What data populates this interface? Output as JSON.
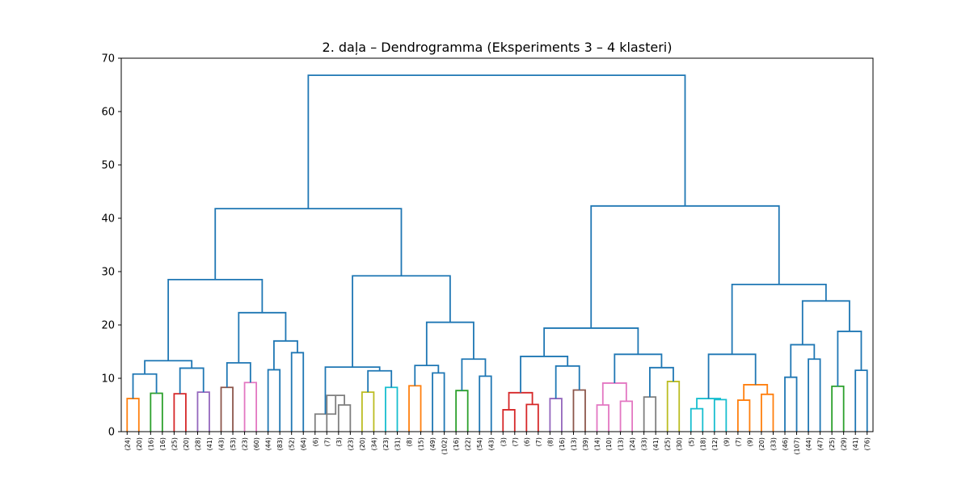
{
  "chart_data": {
    "type": "dendrogram",
    "title": "2. daļa – Dendrogramma (Eksperiments 3 – 4 klasteri)",
    "xlabel": "",
    "ylabel": "",
    "ylim": [
      0,
      70
    ],
    "yticks": [
      "0",
      "10",
      "20",
      "30",
      "40",
      "50",
      "60",
      "70"
    ],
    "grid": false,
    "leaf_labels": [
      "(24)",
      "(20)",
      "(16)",
      "(16)",
      "(25)",
      "(20)",
      "(28)",
      "(41)",
      "(43)",
      "(53)",
      "(23)",
      "(60)",
      "(44)",
      "(83)",
      "(52)",
      "(64)",
      "(6)",
      "(7)",
      "(3)",
      "(23)",
      "(20)",
      "(34)",
      "(23)",
      "(31)",
      "(8)",
      "(15)",
      "(49)",
      "(102)",
      "(16)",
      "(22)",
      "(54)",
      "(43)",
      "(3)",
      "(7)",
      "(6)",
      "(7)",
      "(8)",
      "(16)",
      "(13)",
      "(39)",
      "(14)",
      "(10)",
      "(13)",
      "(24)",
      "(33)",
      "(41)",
      "(25)",
      "(30)",
      "(5)",
      "(18)",
      "(12)",
      "(9)",
      "(7)",
      "(9)",
      "(20)",
      "(33)",
      "(46)",
      "(107)",
      "(44)",
      "(47)",
      "(25)",
      "(29)",
      "(41)",
      "(76)"
    ],
    "link_colors": {
      "C0": "#1f77b4",
      "C1": "#ff7f0e",
      "C2": "#2ca02c",
      "C3": "#d62728",
      "C4": "#9467bd",
      "C5": "#8c564b",
      "C6": "#e377c2",
      "C7": "#7f7f7f",
      "C8": "#bcbd22",
      "C9": "#17becf"
    },
    "links": [
      {
        "a": 0,
        "b": 1,
        "h": 6.2,
        "c": "C1"
      },
      {
        "a": 2,
        "b": 3,
        "h": 7.2,
        "c": "C2"
      },
      {
        "a": 4,
        "b": 5,
        "h": 7.1,
        "c": "C3"
      },
      {
        "a": 6,
        "b": 7,
        "h": 7.4,
        "c": "C4"
      },
      {
        "a": 8,
        "b": 9,
        "h": 8.3,
        "c": "C5"
      },
      {
        "a": 10,
        "b": 11,
        "h": 9.2,
        "c": "C6"
      },
      {
        "a": 64,
        "b": 65,
        "h": 10.8,
        "c": "C0"
      },
      {
        "a": 66,
        "b": 67,
        "h": 11.9,
        "c": "C0"
      },
      {
        "a": 70,
        "b": 71,
        "h": 13.3,
        "c": "C0"
      },
      {
        "a": 68,
        "b": 69,
        "h": 12.9,
        "c": "C0"
      },
      {
        "a": 12,
        "b": 13,
        "h": 11.6,
        "c": "C0"
      },
      {
        "a": 14,
        "b": 15,
        "h": 14.8,
        "c": "C0"
      },
      {
        "a": 74,
        "b": 75,
        "h": 17.0,
        "c": "C0"
      },
      {
        "a": 73,
        "b": 76,
        "h": 22.3,
        "c": "C0"
      },
      {
        "a": 72,
        "b": 77,
        "h": 28.5,
        "c": "C0"
      },
      {
        "a": 18,
        "b": 19,
        "h": 5.0,
        "c": "C7"
      },
      {
        "a": 17,
        "b": 79,
        "h": 6.8,
        "c": "C7"
      },
      {
        "a": 16,
        "b": 80,
        "h": 3.3,
        "c": "C7"
      },
      {
        "a": 20,
        "b": 21,
        "h": 7.4,
        "c": "C8"
      },
      {
        "a": 22,
        "b": 23,
        "h": 8.3,
        "c": "C9"
      },
      {
        "a": 82,
        "b": 83,
        "h": 11.4,
        "c": "C0"
      },
      {
        "a": 81,
        "b": 84,
        "h": 12.1,
        "c": "C0"
      },
      {
        "a": 24,
        "b": 25,
        "h": 8.6,
        "c": "C1"
      },
      {
        "a": 26,
        "b": 27,
        "h": 11.0,
        "c": "C0"
      },
      {
        "a": 86,
        "b": 87,
        "h": 12.4,
        "c": "C0"
      },
      {
        "a": 28,
        "b": 29,
        "h": 7.7,
        "c": "C2"
      },
      {
        "a": 30,
        "b": 31,
        "h": 10.4,
        "c": "C0"
      },
      {
        "a": 89,
        "b": 90,
        "h": 13.6,
        "c": "C0"
      },
      {
        "a": 88,
        "b": 91,
        "h": 20.5,
        "c": "C0"
      },
      {
        "a": 85,
        "b": 92,
        "h": 29.2,
        "c": "C0"
      },
      {
        "a": 78,
        "b": 93,
        "h": 41.8,
        "c": "C0"
      },
      {
        "a": 32,
        "b": 33,
        "h": 4.1,
        "c": "C3"
      },
      {
        "a": 34,
        "b": 35,
        "h": 5.1,
        "c": "C3"
      },
      {
        "a": 95,
        "b": 96,
        "h": 7.3,
        "c": "C3"
      },
      {
        "a": 36,
        "b": 37,
        "h": 6.2,
        "c": "C4"
      },
      {
        "a": 38,
        "b": 39,
        "h": 7.8,
        "c": "C5"
      },
      {
        "a": 98,
        "b": 99,
        "h": 12.3,
        "c": "C0"
      },
      {
        "a": 97,
        "b": 100,
        "h": 14.1,
        "c": "C0"
      },
      {
        "a": 40,
        "b": 41,
        "h": 5.0,
        "c": "C6"
      },
      {
        "a": 42,
        "b": 43,
        "h": 5.7,
        "c": "C6"
      },
      {
        "a": 102,
        "b": 103,
        "h": 9.1,
        "c": "C6"
      },
      {
        "a": 44,
        "b": 45,
        "h": 6.5,
        "c": "C7"
      },
      {
        "a": 46,
        "b": 47,
        "h": 9.4,
        "c": "C8"
      },
      {
        "a": 105,
        "b": 106,
        "h": 12.0,
        "c": "C0"
      },
      {
        "a": 104,
        "b": 107,
        "h": 14.5,
        "c": "C0"
      },
      {
        "a": 101,
        "b": 108,
        "h": 19.4,
        "c": "C0"
      },
      {
        "a": 48,
        "b": 49,
        "h": 4.3,
        "c": "C9"
      },
      {
        "a": 50,
        "b": 51,
        "h": 6.0,
        "c": "C9"
      },
      {
        "a": 110,
        "b": 111,
        "h": 6.2,
        "c": "C9"
      },
      {
        "a": 52,
        "b": 53,
        "h": 5.9,
        "c": "C1"
      },
      {
        "a": 54,
        "b": 55,
        "h": 7.0,
        "c": "C1"
      },
      {
        "a": 113,
        "b": 114,
        "h": 8.8,
        "c": "C1"
      },
      {
        "a": 112,
        "b": 115,
        "h": 14.5,
        "c": "C0"
      },
      {
        "a": 56,
        "b": 57,
        "h": 10.2,
        "c": "C0"
      },
      {
        "a": 58,
        "b": 59,
        "h": 13.6,
        "c": "C0"
      },
      {
        "a": 117,
        "b": 118,
        "h": 16.3,
        "c": "C0"
      },
      {
        "a": 60,
        "b": 61,
        "h": 8.5,
        "c": "C2"
      },
      {
        "a": 62,
        "b": 63,
        "h": 11.5,
        "c": "C0"
      },
      {
        "a": 120,
        "b": 121,
        "h": 18.8,
        "c": "C0"
      },
      {
        "a": 119,
        "b": 122,
        "h": 24.5,
        "c": "C0"
      },
      {
        "a": 116,
        "b": 123,
        "h": 27.6,
        "c": "C0"
      },
      {
        "a": 109,
        "b": 124,
        "h": 42.3,
        "c": "C0"
      },
      {
        "a": 94,
        "b": 125,
        "h": 66.8,
        "c": "C0"
      }
    ]
  }
}
